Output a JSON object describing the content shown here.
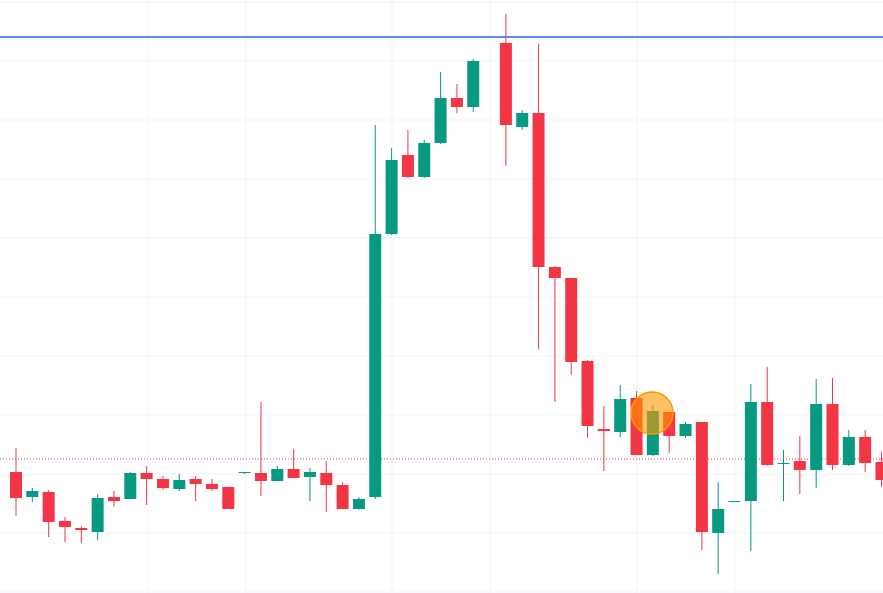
{
  "chart_data": {
    "type": "candlestick",
    "ylim": [
      0,
      593
    ],
    "grid": true,
    "up_color": "#089981",
    "down_color": "#f23645",
    "open": [
      121,
      96,
      101,
      72,
      65,
      61,
      96,
      94,
      120,
      114,
      104,
      114,
      109,
      106,
      120,
      120,
      112,
      124,
      116,
      120,
      108,
      84,
      96,
      359,
      438,
      416,
      450,
      495,
      486,
      null,
      550,
      466,
      480,
      326,
      315,
      232,
      164,
      161,
      195,
      138,
      181,
      157,
      171,
      60,
      91,
      92,
      191,
      129,
      132,
      123,
      189,
      128,
      156,
      131
    ],
    "high": [
      145,
      105,
      103,
      76,
      67,
      99,
      102,
      121,
      127,
      117,
      119,
      117,
      114,
      106,
      121,
      191,
      127,
      144,
      125,
      132,
      111,
      96,
      468,
      445,
      463,
      453,
      521,
      509,
      534,
      null,
      579,
      483,
      549,
      327,
      315,
      233,
      187,
      208,
      202,
      188,
      181,
      171,
      171,
      111,
      92,
      209,
      226,
      143,
      157,
      214,
      215,
      163,
      163,
      141
    ],
    "low": [
      77,
      91,
      56,
      51,
      50,
      53,
      86,
      94,
      88,
      103,
      102,
      92,
      102,
      84,
      119,
      97,
      112,
      115,
      92,
      81,
      84,
      83,
      94,
      358,
      415,
      415,
      449,
      480,
      481,
      null,
      427,
      463,
      244,
      191,
      218,
      155,
      122,
      156,
      138,
      137,
      140,
      155,
      43,
      19,
      91,
      42,
      127,
      92,
      99,
      105,
      123,
      127,
      121,
      106
    ],
    "close": [
      95,
      102,
      71,
      66,
      63,
      95,
      92,
      120,
      114,
      105,
      113,
      109,
      104,
      84,
      121,
      112,
      124,
      115,
      121,
      108,
      84,
      94,
      359,
      433,
      416,
      450,
      495,
      486,
      532,
      null,
      468,
      480,
      326,
      315,
      231,
      167,
      162,
      194,
      138,
      182,
      157,
      169,
      61,
      84,
      92,
      191,
      128,
      130,
      123,
      189,
      128,
      156,
      130,
      113
    ],
    "lines": [
      {
        "value": 556,
        "color": "#2962ff",
        "style": "solid"
      },
      {
        "value": 134,
        "color": "#f23645",
        "style": "dotted"
      }
    ]
  }
}
